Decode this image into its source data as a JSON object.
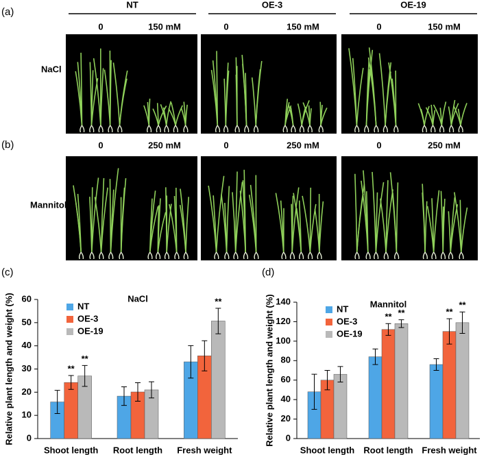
{
  "figure": {
    "panel_labels": [
      "(a)",
      "(b)",
      "(c)",
      "(d)"
    ],
    "genotypes": [
      "NT",
      "OE-3",
      "OE-19"
    ],
    "row_a": {
      "treatment": "NaCl",
      "concentrations": [
        "0",
        "150 mM",
        "0",
        "150 mM",
        "0",
        "150 mM"
      ]
    },
    "row_b": {
      "treatment": "Mannitol",
      "concentrations": [
        "0",
        "250 mM",
        "0",
        "250 mM",
        "0",
        "250 mM"
      ]
    }
  },
  "chart_data": [
    {
      "type": "bar",
      "title": "NaCl",
      "ylabel": "Relative plant length and weight (%)",
      "categories": [
        "Shoot length",
        "Root length",
        "Fresh weight"
      ],
      "ylim": [
        0,
        60
      ],
      "yticks": [
        0,
        10,
        20,
        30,
        40,
        50,
        60
      ],
      "legend": "top-left",
      "series": [
        {
          "name": "NT",
          "color": "#4ea6e6",
          "values": [
            15.8,
            18.3,
            33.1
          ],
          "errors": [
            5,
            4,
            7
          ],
          "significance": [
            null,
            null,
            null
          ]
        },
        {
          "name": "OE-3",
          "color": "#f2643c",
          "values": [
            24.2,
            20.1,
            35.7
          ],
          "errors": [
            3,
            4,
            6.5
          ],
          "significance": [
            "**",
            null,
            null
          ]
        },
        {
          "name": "OE-19",
          "color": "#b9b9b9",
          "values": [
            27.0,
            21.0,
            50.7
          ],
          "errors": [
            4.5,
            3.5,
            5.5
          ],
          "significance": [
            "**",
            null,
            "**"
          ]
        }
      ]
    },
    {
      "type": "bar",
      "title": "Mannitol",
      "ylabel": "Relative plant length and weight (%)",
      "categories": [
        "Shoot length",
        "Root length",
        "Fresh weight"
      ],
      "ylim": [
        0,
        140
      ],
      "yticks": [
        0,
        20,
        40,
        60,
        80,
        100,
        120,
        140
      ],
      "legend": "top-left",
      "series": [
        {
          "name": "NT",
          "color": "#4ea6e6",
          "values": [
            48,
            84,
            76
          ],
          "errors": [
            18,
            8,
            6
          ],
          "significance": [
            null,
            null,
            null
          ]
        },
        {
          "name": "OE-3",
          "color": "#f2643c",
          "values": [
            60,
            112,
            110
          ],
          "errors": [
            10,
            6,
            13
          ],
          "significance": [
            null,
            "**",
            "**"
          ]
        },
        {
          "name": "OE-19",
          "color": "#b9b9b9",
          "values": [
            66,
            118,
            119
          ],
          "errors": [
            8,
            4,
            11
          ],
          "significance": [
            null,
            "**",
            "**"
          ]
        }
      ]
    }
  ]
}
